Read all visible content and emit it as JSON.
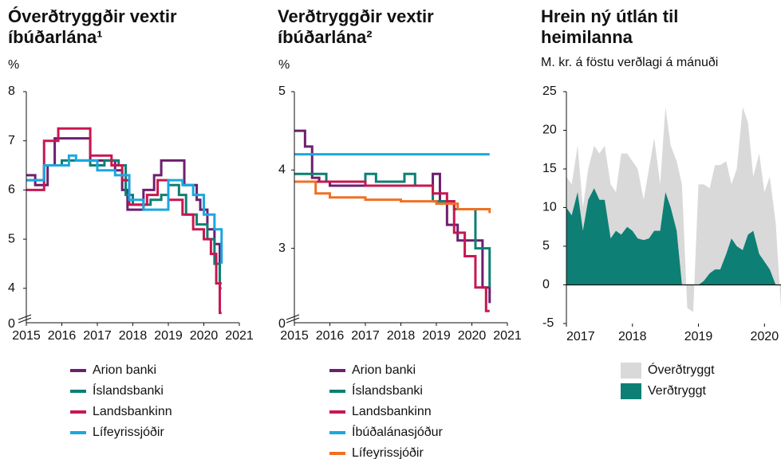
{
  "chart_data": [
    {
      "type": "step-line",
      "title": "Óverðtryggðir vextir íbúðarlána¹",
      "y_label": "%",
      "xlim": [
        2015,
        2021
      ],
      "xticks": [
        2015,
        2016,
        2017,
        2018,
        2019,
        2020,
        2021
      ],
      "ylim": [
        3.3,
        8
      ],
      "yticks": [
        4,
        5,
        6,
        7,
        8
      ],
      "y_break_label": 0,
      "series": [
        {
          "name": "Arion banki",
          "color": "#6d1f6e",
          "x": [
            2015,
            2015.25,
            2015.6,
            2015.8,
            2016.8,
            2017.2,
            2017.5,
            2017.7,
            2017.85,
            2018.3,
            2018.6,
            2018.8,
            2019.45,
            2019.8,
            2019.9,
            2020.1,
            2020.3,
            2020.45,
            2020.5
          ],
          "values": [
            6.3,
            6.1,
            6.5,
            7.05,
            6.6,
            6.6,
            6.4,
            6.0,
            5.6,
            6.0,
            6.3,
            6.6,
            6.1,
            5.8,
            5.6,
            5.2,
            4.9,
            4.1,
            4.1
          ]
        },
        {
          "name": "Íslandsbanki",
          "color": "#0e7f74",
          "x": [
            2015,
            2015.5,
            2016.0,
            2016.8,
            2017.2,
            2017.6,
            2017.8,
            2018.0,
            2018.5,
            2018.8,
            2019.0,
            2019.3,
            2019.5,
            2019.8,
            2020.1,
            2020.3,
            2020.45,
            2020.5
          ],
          "values": [
            6.2,
            6.5,
            6.6,
            6.5,
            6.6,
            6.5,
            5.9,
            5.7,
            5.8,
            5.9,
            6.1,
            5.9,
            5.5,
            5.3,
            5.0,
            4.5,
            4.0,
            4.0
          ]
        },
        {
          "name": "Landsbankinn",
          "color": "#c8174f",
          "x": [
            2015,
            2015.5,
            2015.9,
            2016.8,
            2017.4,
            2017.7,
            2017.9,
            2018.4,
            2018.7,
            2019.0,
            2019.4,
            2019.7,
            2020.0,
            2020.2,
            2020.35,
            2020.45,
            2020.5
          ],
          "values": [
            6.0,
            7.0,
            7.25,
            6.7,
            6.5,
            6.2,
            5.7,
            5.9,
            6.2,
            5.8,
            5.5,
            5.2,
            5.0,
            4.7,
            4.1,
            3.5,
            3.5
          ]
        },
        {
          "name": "Lífeyrissjóðir",
          "color": "#1ba7e0",
          "x": [
            2015,
            2015.5,
            2016.2,
            2016.4,
            2017.0,
            2017.5,
            2017.9,
            2018.3,
            2018.9,
            2019.0,
            2019.4,
            2019.7,
            2020.0,
            2020.3,
            2020.5
          ],
          "values": [
            6.2,
            6.5,
            6.7,
            6.6,
            6.4,
            6.3,
            5.8,
            5.6,
            5.6,
            6.2,
            6.1,
            5.9,
            5.5,
            5.2,
            4.5
          ]
        }
      ]
    },
    {
      "type": "step-line",
      "title": "Verðtryggðir vextir íbúðarlána²",
      "y_label": "%",
      "xlim": [
        2015,
        2021
      ],
      "xticks": [
        2015,
        2016,
        2017,
        2018,
        2019,
        2020,
        2021
      ],
      "ylim": [
        2.05,
        5
      ],
      "yticks": [
        3,
        4,
        5
      ],
      "y_break_label": 0,
      "series": [
        {
          "name": "Arion banki",
          "color": "#6d1f6e",
          "x": [
            2015,
            2015.3,
            2015.5,
            2015.7,
            2016.0,
            2018.9,
            2019.1,
            2019.3,
            2019.6,
            2020.3,
            2020.5
          ],
          "values": [
            4.5,
            4.3,
            3.9,
            3.85,
            3.8,
            3.95,
            3.6,
            3.3,
            3.1,
            2.5,
            2.3
          ]
        },
        {
          "name": "Íslandsbanki",
          "color": "#0e7f74",
          "x": [
            2015,
            2015.9,
            2017.0,
            2017.3,
            2018.1,
            2018.4,
            2018.9,
            2019.5,
            2020.1,
            2020.5
          ],
          "values": [
            3.95,
            3.85,
            3.95,
            3.85,
            3.95,
            3.8,
            3.6,
            3.5,
            3.0,
            2.5
          ]
        },
        {
          "name": "Landsbankinn",
          "color": "#c8174f",
          "x": [
            2015,
            2017.0,
            2018.9,
            2019.3,
            2019.5,
            2019.8,
            2020.1,
            2020.4,
            2020.5
          ],
          "values": [
            3.85,
            3.8,
            3.7,
            3.6,
            3.2,
            2.9,
            2.5,
            2.2,
            2.2
          ]
        },
        {
          "name": "Íbúðalánasjóður",
          "color": "#1ba7e0",
          "x": [
            2015,
            2020.5
          ],
          "values": [
            4.2,
            4.2
          ]
        },
        {
          "name": "Lífeyrissjóðir",
          "color": "#f07023",
          "x": [
            2015,
            2015.6,
            2016.0,
            2017.0,
            2018.0,
            2019.0,
            2019.6,
            2020.5
          ],
          "values": [
            3.85,
            3.7,
            3.65,
            3.62,
            3.6,
            3.57,
            3.5,
            3.45
          ]
        }
      ]
    },
    {
      "type": "area",
      "title": "Hrein ný útlán til heimilanna",
      "subtitle": "M. kr. á föstu verðlagi á mánuði",
      "xlim": [
        2017,
        2020.25
      ],
      "xticks": [
        2017,
        2018,
        2019,
        2020
      ],
      "ylim": [
        -5,
        25
      ],
      "yticks": [
        -5,
        0,
        5,
        10,
        15,
        20,
        25
      ],
      "x": [
        2017,
        2017.08,
        2017.17,
        2017.25,
        2017.33,
        2017.42,
        2017.5,
        2017.58,
        2017.67,
        2017.75,
        2017.83,
        2017.92,
        2018,
        2018.08,
        2018.17,
        2018.25,
        2018.33,
        2018.42,
        2018.5,
        2018.58,
        2018.67,
        2018.75,
        2018.83,
        2018.92,
        2019,
        2019.08,
        2019.17,
        2019.25,
        2019.33,
        2019.42,
        2019.5,
        2019.58,
        2019.67,
        2019.75,
        2019.83,
        2019.92,
        2020,
        2020.08,
        2020.17,
        2020.25
      ],
      "series": [
        {
          "name": "Óverðtryggt",
          "color": "#d9d9d9",
          "values": [
            14,
            13,
            18,
            10,
            15,
            18,
            17,
            18,
            13,
            12,
            17,
            17,
            16,
            15,
            11,
            15,
            19,
            13,
            23,
            18,
            16,
            13,
            -3,
            -3.5,
            13,
            13,
            12.5,
            15.5,
            15.5,
            16,
            13,
            15,
            23,
            21,
            14,
            17,
            12,
            14,
            8,
            -3
          ]
        },
        {
          "name": "Verðtryggt",
          "color": "#0e7f74",
          "values": [
            10,
            9,
            12,
            7,
            11,
            12.5,
            11,
            11,
            6,
            7,
            6.5,
            7.5,
            7,
            6,
            5.8,
            6,
            7,
            7,
            12,
            10,
            7,
            0,
            0,
            0,
            0,
            0.5,
            1.5,
            2,
            2,
            4,
            6,
            5,
            4.5,
            6.5,
            7,
            4,
            3,
            2,
            0,
            0
          ]
        }
      ]
    }
  ]
}
